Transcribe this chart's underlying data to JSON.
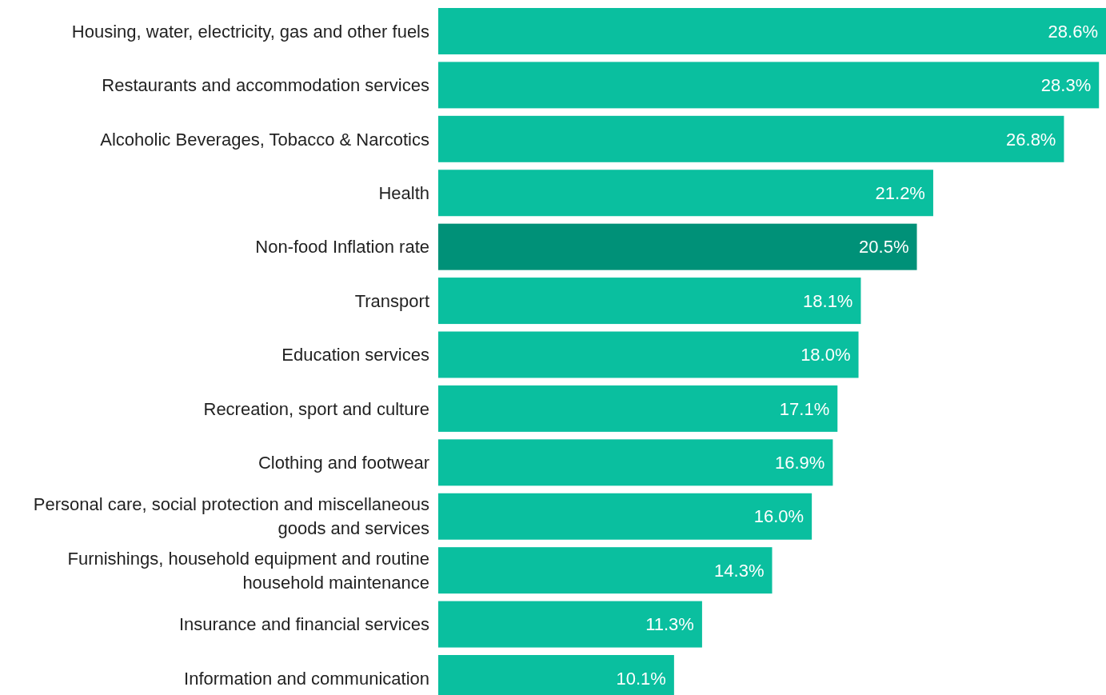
{
  "chart_data": {
    "type": "bar",
    "orientation": "horizontal",
    "data_labels": true,
    "categories": [
      "Housing, water, electricity, gas and other fuels",
      "Restaurants and accommodation services",
      "Alcoholic Beverages, Tobacco & Narcotics",
      "Health",
      "Non-food Inflation rate",
      "Transport",
      "Education services",
      "Recreation, sport and culture",
      "Clothing and footwear",
      "Personal care, social protection and miscellaneous goods and services",
      "Furnishings, household equipment and routine household maintenance",
      "Insurance and financial services",
      "Information and communication"
    ],
    "values": [
      28.6,
      28.3,
      26.8,
      21.2,
      20.5,
      18.1,
      18.0,
      17.1,
      16.9,
      16.0,
      14.3,
      11.3,
      10.1
    ],
    "value_labels": [
      "28.6%",
      "28.3%",
      "26.8%",
      "21.2%",
      "20.5%",
      "18.1%",
      "18.0%",
      "17.1%",
      "16.9%",
      "16.0%",
      "14.3%",
      "11.3%",
      "10.1%"
    ],
    "colors": [
      "#0abf9f",
      "#0abf9f",
      "#0abf9f",
      "#0abf9f",
      "#009178",
      "#0abf9f",
      "#0abf9f",
      "#0abf9f",
      "#0abf9f",
      "#0abf9f",
      "#0abf9f",
      "#0abf9f",
      "#0abf9f"
    ]
  }
}
